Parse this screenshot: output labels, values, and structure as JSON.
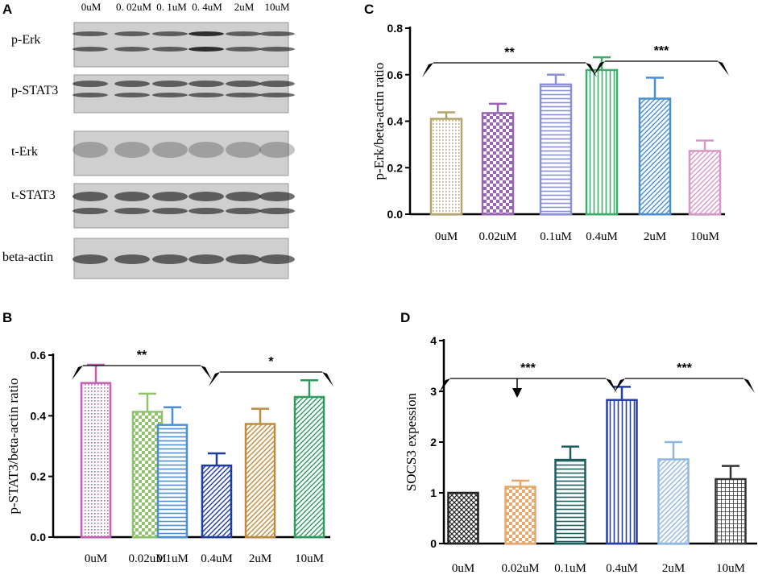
{
  "panel_a": {
    "letter": "A",
    "concentrations": [
      "0uM",
      "0. 02uM",
      "0. 1uM",
      "0. 4uM",
      "2uM",
      "10uM"
    ],
    "rows": [
      "p-Erk",
      "p-STAT3",
      "t-Erk",
      "t-STAT3",
      "beta-actin"
    ]
  },
  "chart_data": [
    {
      "letter": "C",
      "type": "bar",
      "categories": [
        "0uM",
        "0.02uM",
        "0.1uM",
        "0.4uM",
        "2uM",
        "10uM"
      ],
      "values": [
        0.41,
        0.435,
        0.558,
        0.62,
        0.497,
        0.272
      ],
      "errors": [
        0.028,
        0.04,
        0.042,
        0.055,
        0.09,
        0.045
      ],
      "ylabel": "p-Erk/beta-actin ratio",
      "ylim": [
        0,
        0.8
      ],
      "yticks": [
        "0.0",
        "0.2",
        "0.4",
        "0.6",
        "0.8"
      ],
      "colors": [
        "#b3a46a",
        "#9a64b6",
        "#8a8fd8",
        "#3caf6a",
        "#4a8fd0",
        "#d897c9"
      ],
      "patterns": [
        "dots",
        "checker",
        "hlines",
        "vlines",
        "diag",
        "diag"
      ],
      "annotations": [
        {
          "label": "**",
          "from": 0,
          "to": 3
        },
        {
          "label": "***",
          "from": 3,
          "to": 5
        }
      ]
    },
    {
      "letter": "B",
      "type": "bar",
      "categories": [
        "0uM",
        "0.02uM",
        "0.1uM",
        "0.4uM",
        "2uM",
        "10uM"
      ],
      "values": [
        0.508,
        0.413,
        0.37,
        0.236,
        0.373,
        0.462
      ],
      "errors": [
        0.06,
        0.06,
        0.058,
        0.04,
        0.05,
        0.055
      ],
      "ylabel": "p-STAT3/beta-actin ratio",
      "ylim": [
        0,
        0.6
      ],
      "yticks": [
        "0.0",
        "0.2",
        "0.4",
        "0.6"
      ],
      "colors": [
        "#c45fb6",
        "#8fc46a",
        "#4b8fd4",
        "#1e3c9b",
        "#c08a3c",
        "#2f9a5e"
      ],
      "patterns": [
        "dots",
        "checker",
        "hlines",
        "diag",
        "diag",
        "diag"
      ],
      "annotations": [
        {
          "label": "**",
          "from": 0,
          "to": 3
        },
        {
          "label": "*",
          "from": 3,
          "to": 5
        }
      ]
    },
    {
      "letter": "D",
      "type": "bar",
      "categories": [
        "0uM",
        "0.02uM",
        "0.1uM",
        "0.4uM",
        "2uM",
        "10uM"
      ],
      "values": [
        1.0,
        1.12,
        1.65,
        2.83,
        1.66,
        1.27
      ],
      "errors": [
        0.0,
        0.12,
        0.26,
        0.26,
        0.34,
        0.26
      ],
      "ylabel": "SOCS3 expession",
      "ylim": [
        0,
        4
      ],
      "yticks": [
        "0",
        "1",
        "2",
        "3",
        "4"
      ],
      "colors": [
        "#222222",
        "#e8a86a",
        "#1f5e5e",
        "#243fa6",
        "#8eb8e2",
        "#333333"
      ],
      "patterns": [
        "crosshatch",
        "checker",
        "hlines",
        "vlines",
        "diag",
        "grid"
      ],
      "annotations": [
        {
          "label": "***",
          "from": 0,
          "to": 3,
          "extra_arrow": 1
        },
        {
          "label": "***",
          "from": 3,
          "to": 5
        }
      ]
    }
  ]
}
